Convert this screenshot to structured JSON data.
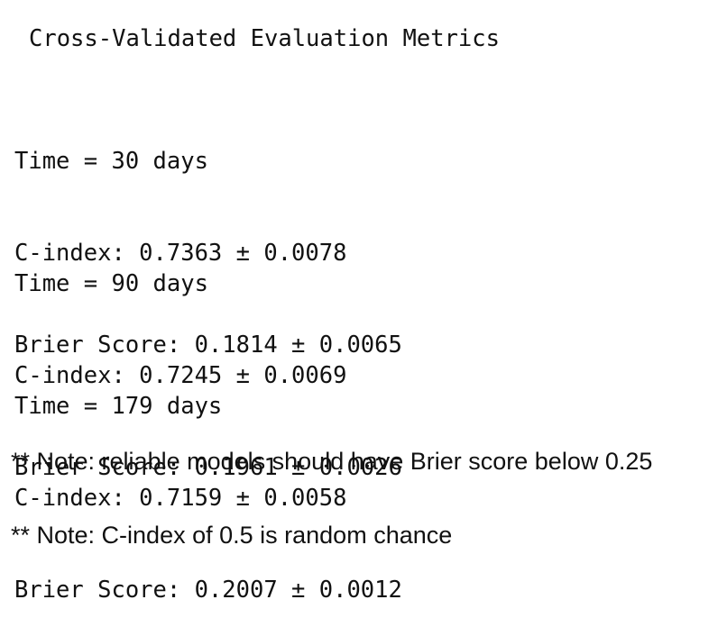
{
  "document": {
    "title": "Cross-Validated Evaluation Metrics",
    "blocks": [
      {
        "time_line": "Time = 30 days",
        "c_index_line": "C-index: 0.7363 ± 0.0078",
        "brier_line": "Brier Score: 0.1814 ± 0.0065"
      },
      {
        "time_line": "Time = 90 days",
        "c_index_line": "C-index: 0.7245 ± 0.0069",
        "brier_line": "Brier Score: 0.1961 ± 0.0026"
      },
      {
        "time_line": "Time = 179 days",
        "c_index_line": "C-index: 0.7159 ± 0.0058",
        "brier_line": "Brier Score: 0.2007 ± 0.0012"
      }
    ],
    "notes": [
      "** Note: reliable models should have Brier score below 0.25",
      "** Note: C-index of 0.5 is random chance"
    ]
  }
}
